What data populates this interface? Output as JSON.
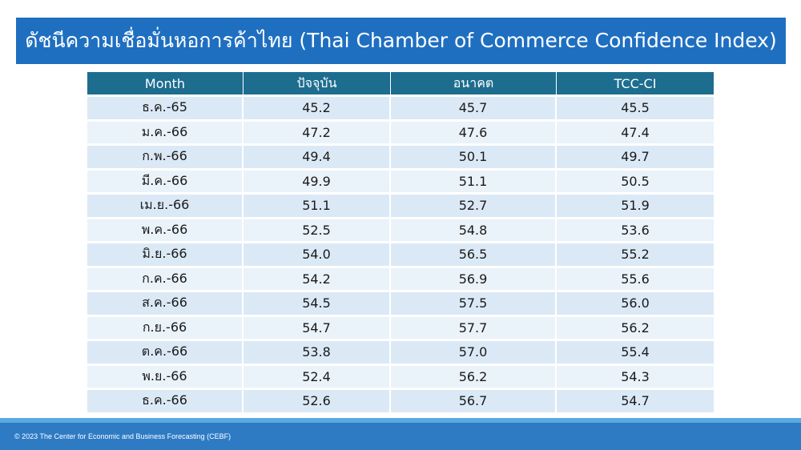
{
  "title": "ดัชนีความเชื่อมั่นหอการค้าไทย (Thai Chamber of Commerce Confidence Index)",
  "footer": "© 2023 The Center for Economic and Business Forecasting (CEBF)",
  "colors": {
    "title_bg": "#1f6fc1",
    "header_bg": "#1d6d8f",
    "decline_text": "#e31b23",
    "footer_bg": "#2e7bc4"
  },
  "table": {
    "headers": [
      "Month",
      "ปัจจุบัน",
      "อนาคต",
      "TCC-CI"
    ],
    "rows": [
      [
        "ธ.ค.-65",
        "45.2",
        "45.7",
        "45.5"
      ],
      [
        "ม.ค.-66",
        "47.2",
        "47.6",
        "47.4"
      ],
      [
        "ก.พ.-66",
        "49.4",
        "50.1",
        "49.7"
      ],
      [
        "มี.ค.-66",
        "49.9",
        "51.1",
        "50.5"
      ],
      [
        "เม.ย.-66",
        "51.1",
        "52.7",
        "51.9"
      ],
      [
        "พ.ค.-66",
        "52.5",
        "54.8",
        "53.6"
      ],
      [
        "มิ.ย.-66",
        "54.0",
        "56.5",
        "55.2"
      ],
      [
        "ก.ค.-66",
        "54.2",
        "56.9",
        "55.6"
      ],
      [
        "ส.ค.-66",
        "54.5",
        "57.5",
        "56.0"
      ],
      [
        "ก.ย.-66",
        "54.7",
        "57.7",
        "56.2"
      ],
      [
        "ต.ค.-66",
        "53.8",
        "57.0",
        "55.4"
      ],
      [
        "พ.ย.-66",
        "52.4",
        "56.2",
        "54.3"
      ],
      [
        "ธ.ค.-66",
        "52.6",
        "56.7",
        "54.7"
      ]
    ],
    "highlighted_rows": [
      10,
      11
    ]
  },
  "chart_data": {
    "type": "table",
    "title": "ดัชนีความเชื่อมั่นหอการค้าไทย (Thai Chamber of Commerce Confidence Index)",
    "categories": [
      "ธ.ค.-65",
      "ม.ค.-66",
      "ก.พ.-66",
      "มี.ค.-66",
      "เม.ย.-66",
      "พ.ค.-66",
      "มิ.ย.-66",
      "ก.ค.-66",
      "ส.ค.-66",
      "ก.ย.-66",
      "ต.ค.-66",
      "พ.ย.-66",
      "ธ.ค.-66"
    ],
    "series": [
      {
        "name": "ปัจจุบัน",
        "values": [
          45.2,
          47.2,
          49.4,
          49.9,
          51.1,
          52.5,
          54.0,
          54.2,
          54.5,
          54.7,
          53.8,
          52.4,
          52.6
        ]
      },
      {
        "name": "อนาคต",
        "values": [
          45.7,
          47.6,
          50.1,
          51.1,
          52.7,
          54.8,
          56.5,
          56.9,
          57.5,
          57.7,
          57.0,
          56.2,
          56.7
        ]
      },
      {
        "name": "TCC-CI",
        "values": [
          45.5,
          47.4,
          49.7,
          50.5,
          51.9,
          53.6,
          55.2,
          55.6,
          56.0,
          56.2,
          55.4,
          54.3,
          54.7
        ]
      }
    ]
  }
}
